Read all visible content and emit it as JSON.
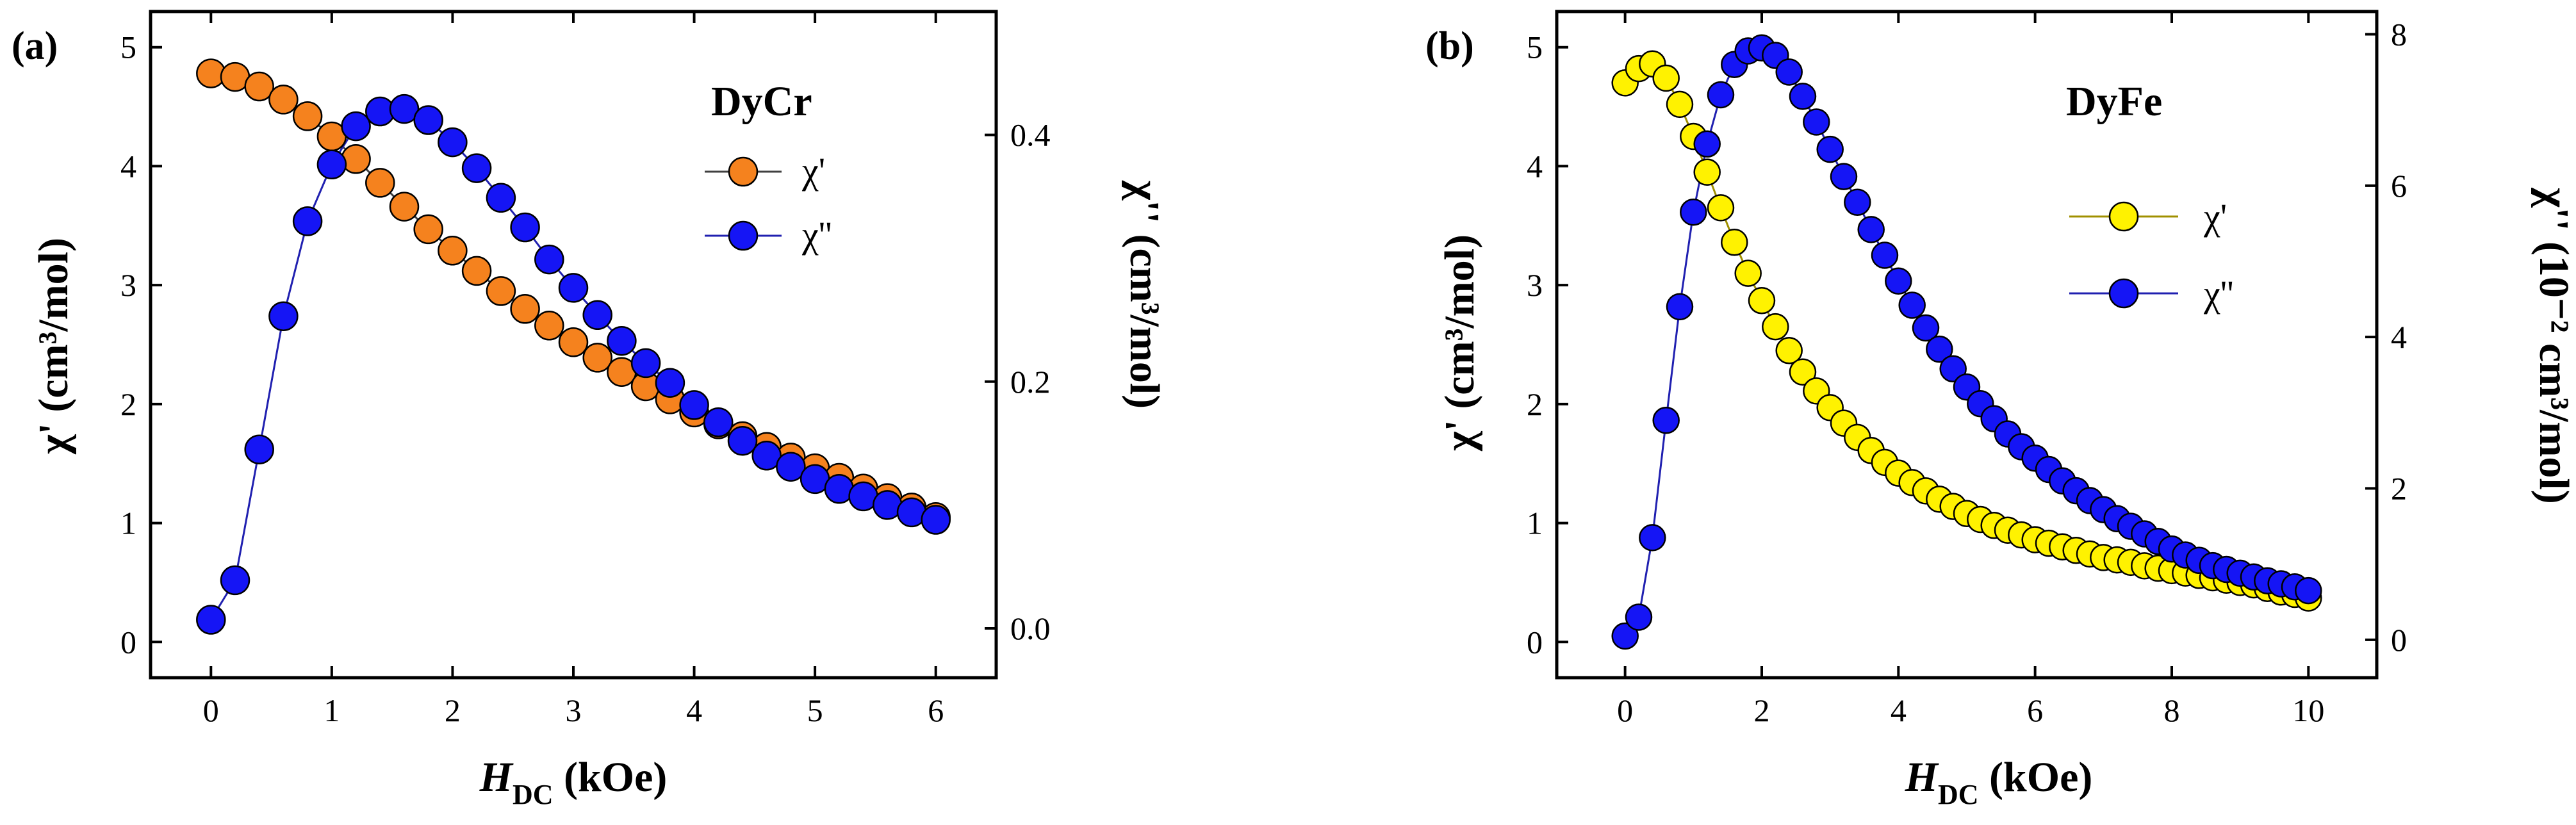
{
  "colors": {
    "orange": "#F5821E",
    "yellow": "#FFF200",
    "blue": "#1515F5",
    "line_blue": "#2020B0",
    "line_dark": "#404040",
    "line_olive": "#A09000"
  },
  "chart_data": [
    {
      "type": "line",
      "panel": "(a)",
      "legend_title": "DyCr",
      "xlabel": "H",
      "xlabel_sub": "DC",
      "xlabel_unit": " (kOe)",
      "ylabel_left": "χ' (cm³/mol)",
      "ylabel_right": "χ'' (cm³/mol)",
      "xlim": [
        -0.5,
        6.5
      ],
      "ylim_left": [
        -0.3,
        5.3
      ],
      "ylim_right": [
        -0.04,
        0.5
      ],
      "xticks": [
        "0",
        "1",
        "2",
        "3",
        "4",
        "5",
        "6"
      ],
      "yticks_left": [
        "0",
        "1",
        "2",
        "3",
        "4",
        "5"
      ],
      "yticks_right": [
        "0.0",
        "0.2",
        "0.4"
      ],
      "series": [
        {
          "name": "χ'",
          "axis": "left",
          "x": [
            0,
            0.2,
            0.4,
            0.6,
            0.8,
            1.0,
            1.2,
            1.4,
            1.6,
            1.8,
            2.0,
            2.2,
            2.4,
            2.6,
            2.8,
            3.0,
            3.2,
            3.4,
            3.6,
            3.8,
            4.0,
            4.2,
            4.4,
            4.6,
            4.8,
            5.0,
            5.2,
            5.4,
            5.6,
            5.8,
            6.0
          ],
          "values": [
            4.78,
            4.75,
            4.67,
            4.56,
            4.42,
            4.25,
            4.06,
            3.86,
            3.66,
            3.47,
            3.29,
            3.12,
            2.95,
            2.8,
            2.66,
            2.52,
            2.39,
            2.27,
            2.15,
            2.04,
            1.93,
            1.83,
            1.73,
            1.64,
            1.55,
            1.46,
            1.38,
            1.29,
            1.21,
            1.13,
            1.05
          ]
        },
        {
          "name": "χ''",
          "axis": "right",
          "x": [
            0,
            0.2,
            0.4,
            0.6,
            0.8,
            1.0,
            1.2,
            1.4,
            1.6,
            1.8,
            2.0,
            2.2,
            2.4,
            2.6,
            2.8,
            3.0,
            3.2,
            3.4,
            3.6,
            3.8,
            4.0,
            4.2,
            4.4,
            4.6,
            4.8,
            5.0,
            5.2,
            5.4,
            5.6,
            5.8,
            6.0
          ],
          "values": [
            0.007,
            0.039,
            0.145,
            0.253,
            0.33,
            0.376,
            0.407,
            0.419,
            0.421,
            0.412,
            0.394,
            0.373,
            0.349,
            0.325,
            0.299,
            0.276,
            0.254,
            0.233,
            0.215,
            0.199,
            0.181,
            0.167,
            0.152,
            0.14,
            0.131,
            0.121,
            0.113,
            0.107,
            0.1,
            0.094,
            0.088
          ]
        }
      ]
    },
    {
      "type": "line",
      "panel": "(b)",
      "legend_title": "DyFe",
      "xlabel": "H",
      "xlabel_sub": "DC",
      "xlabel_unit": " (kOe)",
      "ylabel_left": "χ' (cm³/mol)",
      "ylabel_right": "χ'' (10⁻² cm³/mol)",
      "xlim": [
        -1.0,
        11.0
      ],
      "ylim_left": [
        -0.3,
        5.3
      ],
      "ylim_right": [
        -0.5,
        8.3
      ],
      "xticks": [
        "0",
        "2",
        "4",
        "6",
        "8",
        "10"
      ],
      "yticks_left": [
        "0",
        "1",
        "2",
        "3",
        "4",
        "5"
      ],
      "yticks_right": [
        "0",
        "2",
        "4",
        "6",
        "8"
      ],
      "series": [
        {
          "name": "χ'",
          "axis": "left",
          "x": [
            0,
            0.2,
            0.4,
            0.6,
            0.8,
            1.0,
            1.2,
            1.4,
            1.6,
            1.8,
            2.0,
            2.2,
            2.4,
            2.6,
            2.8,
            3.0,
            3.2,
            3.4,
            3.6,
            3.8,
            4.0,
            4.2,
            4.4,
            4.6,
            4.8,
            5.0,
            5.2,
            5.4,
            5.6,
            5.8,
            6.0,
            6.2,
            6.4,
            6.6,
            6.8,
            7.0,
            7.2,
            7.4,
            7.6,
            7.8,
            8.0,
            8.2,
            8.4,
            8.6,
            8.8,
            9.0,
            9.2,
            9.4,
            9.6,
            9.8,
            10.0
          ],
          "values": [
            4.7,
            4.82,
            4.86,
            4.74,
            4.52,
            4.25,
            3.95,
            3.65,
            3.36,
            3.1,
            2.87,
            2.65,
            2.45,
            2.27,
            2.11,
            1.97,
            1.84,
            1.72,
            1.61,
            1.51,
            1.42,
            1.34,
            1.27,
            1.2,
            1.14,
            1.08,
            1.03,
            0.98,
            0.94,
            0.9,
            0.86,
            0.83,
            0.8,
            0.77,
            0.74,
            0.71,
            0.69,
            0.67,
            0.64,
            0.62,
            0.6,
            0.58,
            0.56,
            0.54,
            0.52,
            0.5,
            0.48,
            0.45,
            0.42,
            0.4,
            0.37
          ]
        },
        {
          "name": "χ''",
          "axis": "right",
          "x": [
            0,
            0.2,
            0.4,
            0.6,
            0.8,
            1.0,
            1.2,
            1.4,
            1.6,
            1.8,
            2.0,
            2.2,
            2.4,
            2.6,
            2.8,
            3.0,
            3.2,
            3.4,
            3.6,
            3.8,
            4.0,
            4.2,
            4.4,
            4.6,
            4.8,
            5.0,
            5.2,
            5.4,
            5.6,
            5.8,
            6.0,
            6.2,
            6.4,
            6.6,
            6.8,
            7.0,
            7.2,
            7.4,
            7.6,
            7.8,
            8.0,
            8.2,
            8.4,
            8.6,
            8.8,
            9.0,
            9.2,
            9.4,
            9.6,
            9.8,
            10.0
          ],
          "values": [
            0.05,
            0.3,
            1.35,
            2.9,
            4.4,
            5.65,
            6.55,
            7.2,
            7.6,
            7.78,
            7.82,
            7.72,
            7.5,
            7.18,
            6.84,
            6.48,
            6.12,
            5.78,
            5.42,
            5.08,
            4.74,
            4.42,
            4.12,
            3.84,
            3.58,
            3.34,
            3.12,
            2.92,
            2.72,
            2.55,
            2.4,
            2.25,
            2.1,
            1.97,
            1.84,
            1.72,
            1.6,
            1.5,
            1.4,
            1.3,
            1.2,
            1.12,
            1.05,
            0.98,
            0.93,
            0.88,
            0.83,
            0.78,
            0.74,
            0.7,
            0.65
          ]
        }
      ]
    }
  ]
}
